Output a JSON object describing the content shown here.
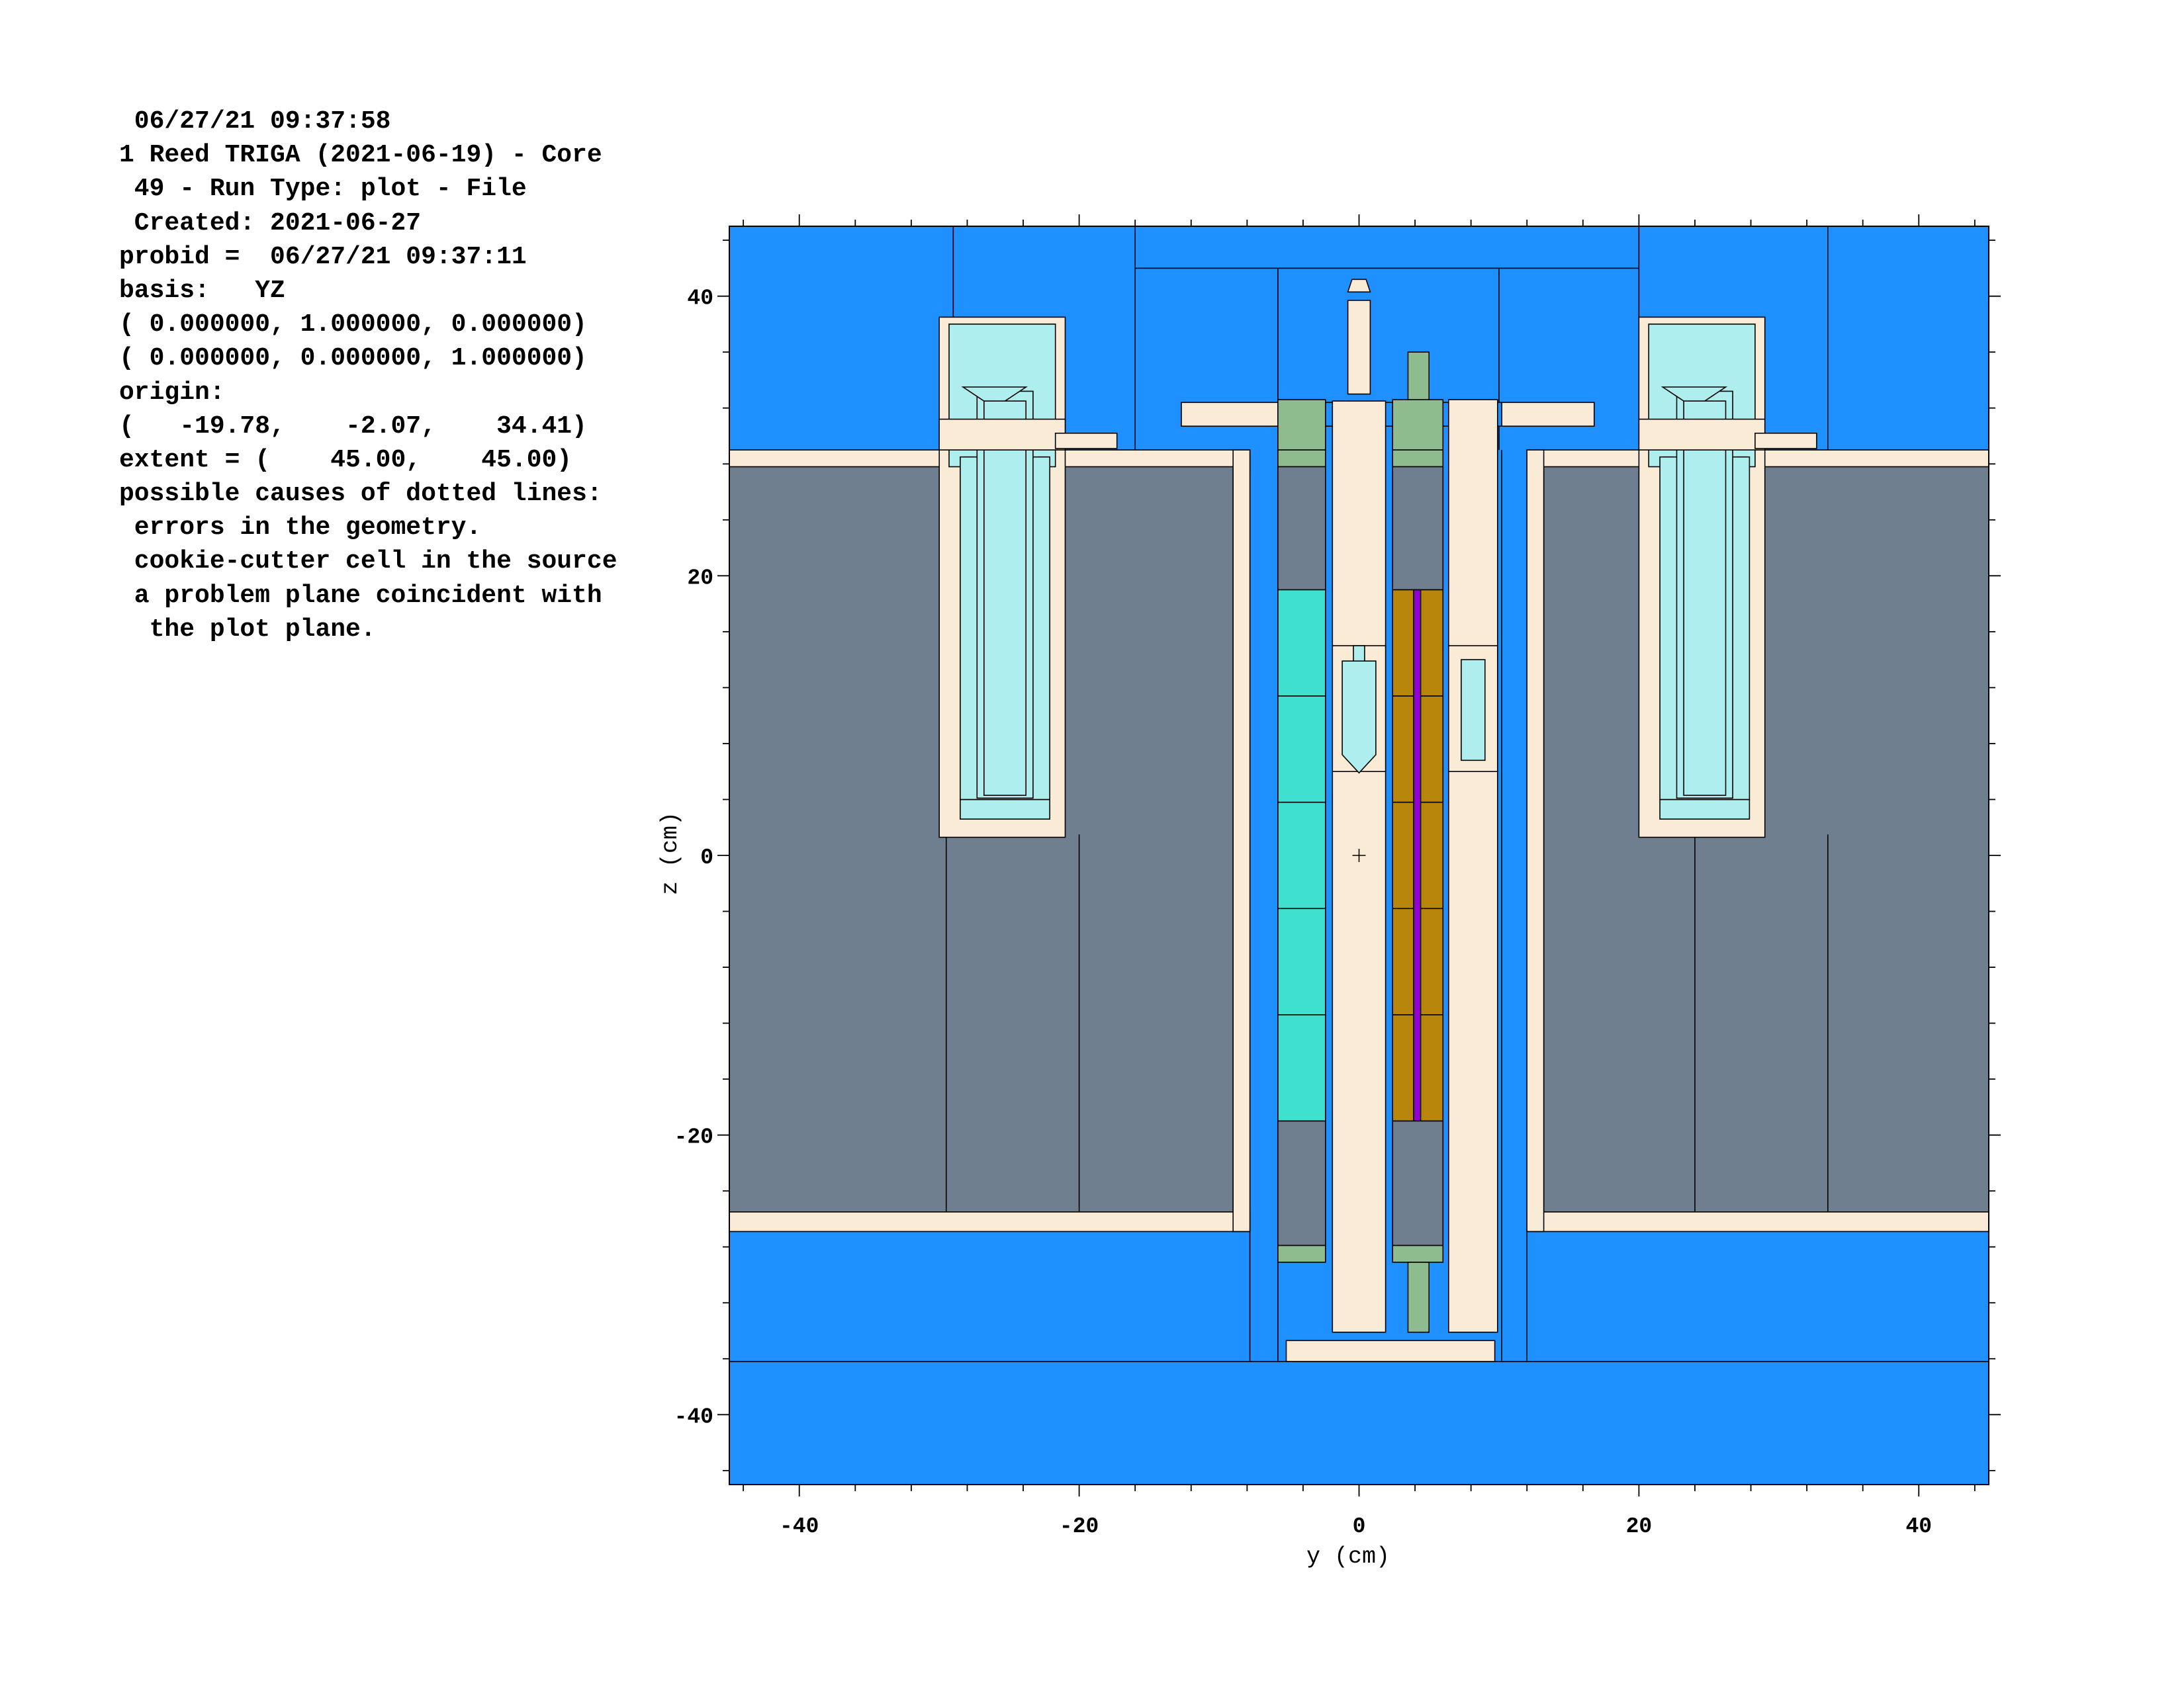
{
  "info_lines": [
    " 06/27/21 09:37:58",
    "1 Reed TRIGA (2021-06-19) - Core",
    " 49 - Run Type: plot - File",
    " Created: 2021-06-27",
    "probid =  06/27/21 09:37:11",
    "basis:   YZ",
    "( 0.000000, 1.000000, 0.000000)",
    "( 0.000000, 0.000000, 1.000000)",
    "origin:",
    "(   -19.78,    -2.07,    34.41)",
    "extent = (    45.00,    45.00)",
    "possible causes of dotted lines:",
    " errors in the geometry.",
    " cookie-cutter cell in the source",
    " a problem plane coincident with",
    "  the plot plane."
  ],
  "axes": {
    "xlabel": "y (cm)",
    "ylabel": "z (cm)",
    "xlim": [
      -45,
      45
    ],
    "ylim": [
      -45,
      45
    ],
    "x_ticks": [
      "-40",
      "-20",
      "0",
      "20",
      "40"
    ],
    "y_ticks": [
      "40",
      "20",
      "0",
      "-20",
      "-40"
    ]
  },
  "colors": {
    "water": "#1e90ff",
    "graphite": "#6f7f8f",
    "cladding": "#faebd7",
    "void": "#afeeee",
    "fuel": "#40e0d0",
    "pin_end": "#8fbc8f",
    "fuel_meat": "#b8860b",
    "zr_rod": "#9400d3",
    "outline": "#000000"
  }
}
